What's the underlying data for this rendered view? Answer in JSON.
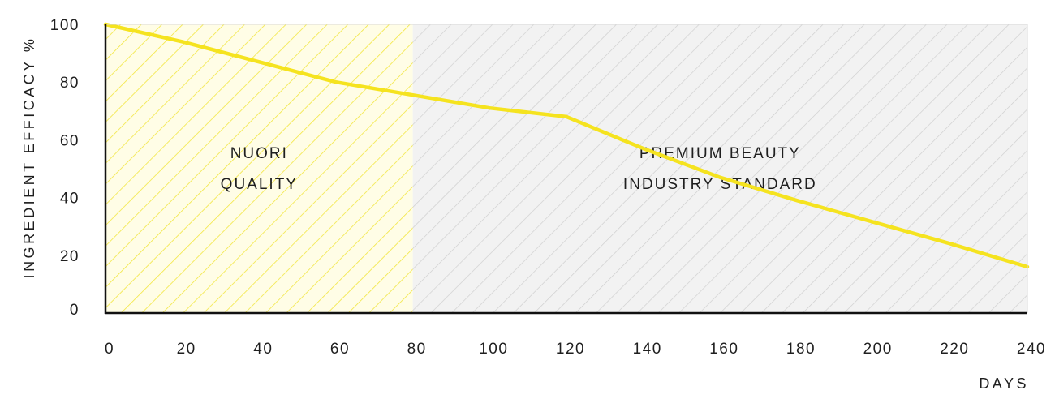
{
  "chart_data": {
    "type": "line",
    "xlabel": "DAYS",
    "ylabel": "INGREDIENT EFFICACY %",
    "xlim": [
      0,
      240
    ],
    "ylim": [
      0,
      100
    ],
    "x_ticks": [
      0,
      20,
      40,
      60,
      80,
      100,
      120,
      140,
      160,
      180,
      200,
      220,
      240
    ],
    "y_ticks": [
      0,
      20,
      40,
      60,
      80,
      100
    ],
    "series": [
      {
        "color": "#f5e31f",
        "points": [
          {
            "x": 0,
            "y": 100
          },
          {
            "x": 20,
            "y": 94
          },
          {
            "x": 40,
            "y": 87
          },
          {
            "x": 60,
            "y": 80
          },
          {
            "x": 80,
            "y": 75.5
          },
          {
            "x": 100,
            "y": 71
          },
          {
            "x": 120,
            "y": 68
          },
          {
            "x": 140,
            "y": 57
          },
          {
            "x": 160,
            "y": 47
          },
          {
            "x": 180,
            "y": 39
          },
          {
            "x": 200,
            "y": 31.5
          },
          {
            "x": 220,
            "y": 24
          },
          {
            "x": 240,
            "y": 16
          }
        ]
      }
    ],
    "regions": [
      {
        "x_start": 0,
        "x_end": 80,
        "lines": [
          "NUORI",
          "QUALITY"
        ],
        "hatch_color": "#f2e640",
        "background": "#fffde6"
      },
      {
        "x_start": 80,
        "x_end": 240,
        "lines": [
          "PREMIUM BEAUTY",
          "INDUSTRY STANDARD"
        ],
        "hatch_color": "#cfcfcf",
        "background": "#f2f2f2"
      }
    ],
    "grid": false,
    "legend": "none"
  }
}
